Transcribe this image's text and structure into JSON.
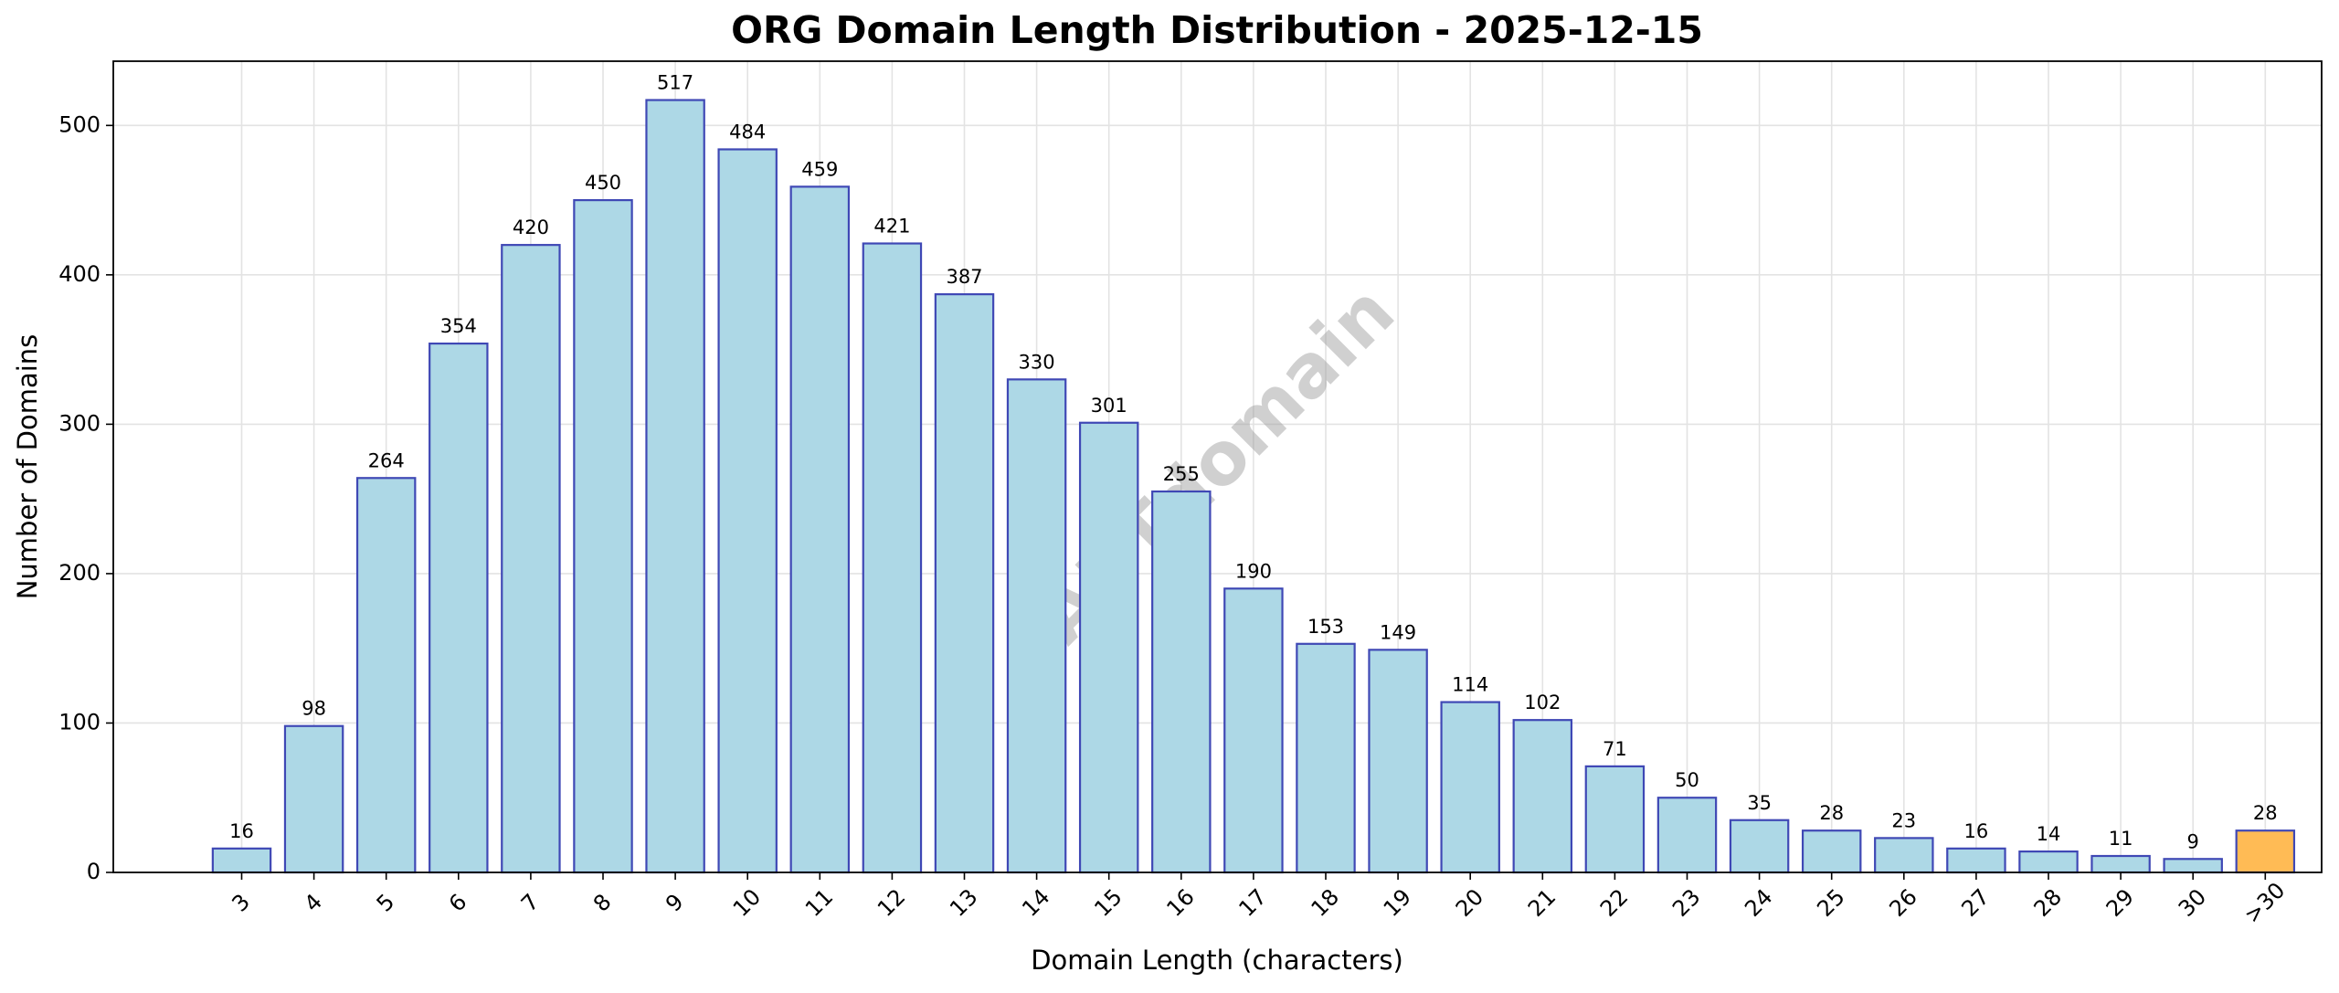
{
  "chart_data": {
    "type": "bar",
    "title": "ORG Domain Length Distribution - 2025-12-15",
    "xlabel": "Domain Length (characters)",
    "ylabel": "Number of Domains",
    "watermark": "ABTdomain",
    "categories": [
      "3",
      "4",
      "5",
      "6",
      "7",
      "8",
      "9",
      "10",
      "11",
      "12",
      "13",
      "14",
      "15",
      "16",
      "17",
      "18",
      "19",
      "20",
      "21",
      "22",
      "23",
      "24",
      "25",
      "26",
      "27",
      "28",
      "29",
      "30",
      ">30"
    ],
    "values": [
      16,
      98,
      264,
      354,
      420,
      450,
      517,
      484,
      459,
      421,
      387,
      330,
      301,
      255,
      190,
      153,
      149,
      114,
      102,
      71,
      50,
      35,
      28,
      23,
      16,
      14,
      11,
      9,
      28
    ],
    "colors": [
      "#add8e6",
      "#add8e6",
      "#add8e6",
      "#add8e6",
      "#add8e6",
      "#add8e6",
      "#add8e6",
      "#add8e6",
      "#add8e6",
      "#add8e6",
      "#add8e6",
      "#add8e6",
      "#add8e6",
      "#add8e6",
      "#add8e6",
      "#add8e6",
      "#add8e6",
      "#add8e6",
      "#add8e6",
      "#add8e6",
      "#add8e6",
      "#add8e6",
      "#add8e6",
      "#add8e6",
      "#add8e6",
      "#add8e6",
      "#add8e6",
      "#add8e6",
      "#ffbb55"
    ],
    "edge_color": "#3f48b5",
    "ylim": [
      0,
      543
    ],
    "yticks": [
      0,
      100,
      200,
      300,
      400,
      500
    ],
    "grid": true
  }
}
